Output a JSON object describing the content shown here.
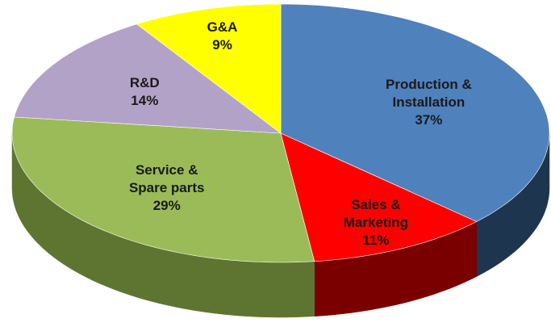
{
  "chart_data": {
    "type": "pie3d",
    "categories": [
      "Production & Installation",
      "Sales & Marketing",
      "Service & Spare parts",
      "R&D",
      "G&A"
    ],
    "values": [
      37,
      11,
      29,
      14,
      9
    ],
    "value_labels": [
      "37%",
      "11%",
      "29%",
      "14%",
      "9%"
    ],
    "colors": [
      "#4f81bd",
      "#ff0000",
      "#9bbb59",
      "#b3a2c7",
      "#ffff00"
    ],
    "side_colors": [
      "#1e3550",
      "#7a0000",
      "#5e7531",
      "#6e6280",
      "#9a9a00"
    ]
  }
}
